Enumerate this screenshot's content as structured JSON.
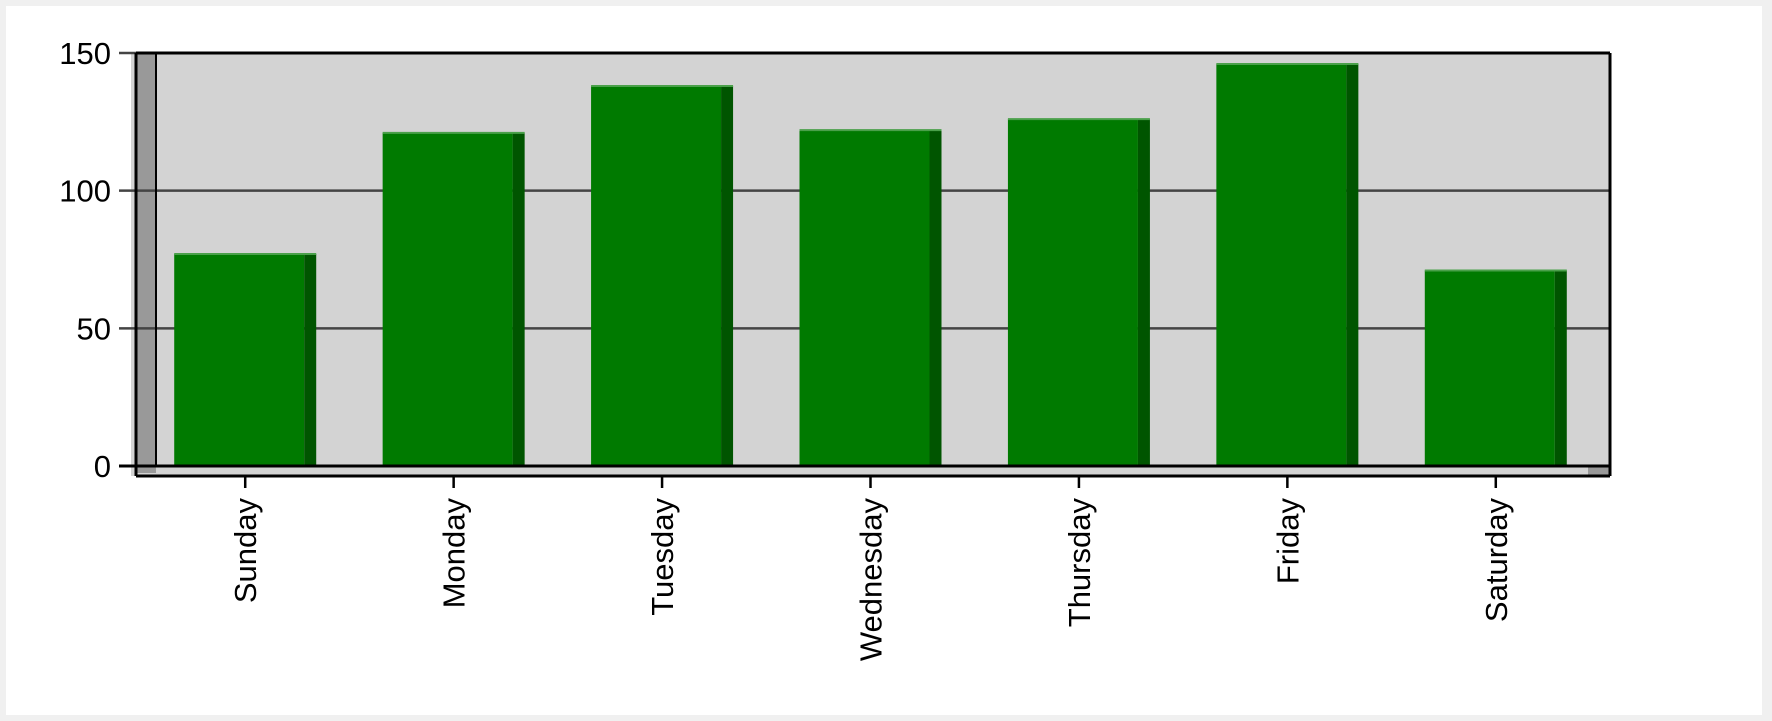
{
  "chart_data": {
    "type": "bar",
    "title": "",
    "xlabel": "",
    "ylabel": "",
    "categories": [
      "Sunday",
      "Monday",
      "Tuesday",
      "Wednesday",
      "Thursday",
      "Friday",
      "Saturday"
    ],
    "values": [
      77,
      121,
      138,
      122,
      126,
      146,
      71
    ],
    "ylim": [
      0,
      150
    ],
    "yticks": [
      "0",
      "50",
      "100",
      "150"
    ],
    "grid": true,
    "legend": "none",
    "colors": {
      "bar": "#007a00",
      "bar_side": "#005500",
      "plot_background": "#d3d3d3",
      "wall_side": "#999999",
      "gridline": "#444444",
      "axis": "#000000"
    }
  }
}
